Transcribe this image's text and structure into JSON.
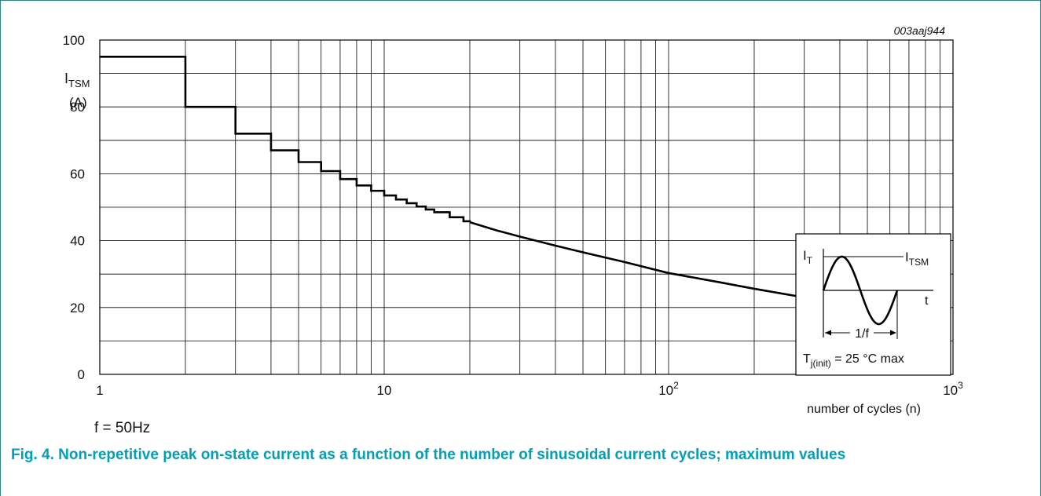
{
  "figure_id": "003aaj944",
  "condition": "f = 50Hz",
  "caption": "Fig. 4. Non-repetitive peak on-state current as a function of the number of sinusoidal current cycles; maximum values",
  "colors": {
    "caption": "#00a0b8",
    "frame": "#2a8a8a",
    "line": "#000000",
    "grid": "#000000"
  },
  "chart_data": {
    "type": "line",
    "title": "",
    "ylabel": {
      "main": "I",
      "sub": "TSM",
      "unit": "(A)"
    },
    "xlabel": "number of cycles (n)",
    "xscale": "log",
    "xlim": [
      1,
      1000
    ],
    "ylim": [
      0,
      100
    ],
    "yticks": [
      0,
      20,
      40,
      60,
      80,
      100
    ],
    "xticks": [
      {
        "value": 1,
        "base": "1",
        "exp": ""
      },
      {
        "value": 10,
        "base": "10",
        "exp": ""
      },
      {
        "value": 100,
        "base": "10",
        "exp": "2"
      },
      {
        "value": 1000,
        "base": "10",
        "exp": "3"
      }
    ],
    "grid": true,
    "series": [
      {
        "steps": [
          [
            1,
            95
          ],
          [
            2,
            80
          ],
          [
            3,
            72
          ],
          [
            4,
            67
          ],
          [
            5,
            63.5
          ],
          [
            6,
            60.8
          ],
          [
            7,
            58.4
          ],
          [
            8,
            56.5
          ],
          [
            9,
            54.9
          ],
          [
            10,
            53.5
          ],
          [
            11,
            52.3
          ],
          [
            12,
            51.2
          ],
          [
            13,
            50.2
          ],
          [
            14,
            49.3
          ],
          [
            15,
            48.5
          ],
          [
            17,
            47
          ],
          [
            19,
            45.8
          ],
          [
            20,
            45.5
          ]
        ],
        "curve": [
          [
            20,
            45.5
          ],
          [
            25,
            43
          ],
          [
            30,
            41.2
          ],
          [
            40,
            38.5
          ],
          [
            50,
            36.5
          ],
          [
            70,
            33.6
          ],
          [
            100,
            30.3
          ],
          [
            150,
            27.6
          ],
          [
            200,
            25.6
          ],
          [
            300,
            23
          ]
        ]
      }
    ],
    "inset": {
      "current_label": {
        "main": "I",
        "sub": "T"
      },
      "peak_label": {
        "main": "I",
        "sub": "TSM"
      },
      "time_label": "t",
      "period_label": "1/f",
      "temperature": {
        "main": "T",
        "sub": "j(init)",
        "rest": " = 25 °C max"
      }
    }
  }
}
